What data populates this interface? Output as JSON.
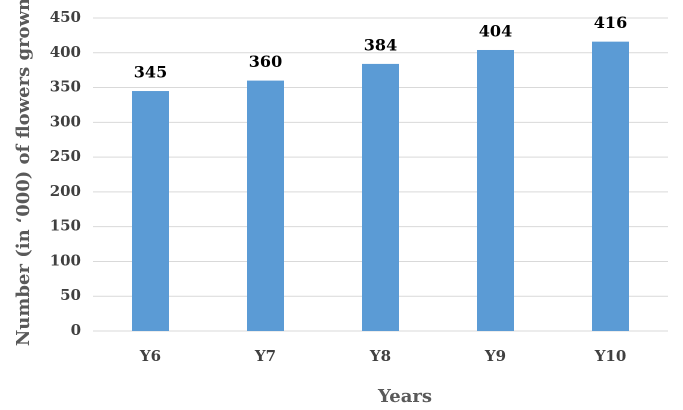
{
  "chart_data": {
    "type": "bar",
    "y_label": "Number (in ‘000) of flowers grown",
    "x_label": "Years",
    "categories": [
      "Y6",
      "Y7",
      "Y8",
      "Y9",
      "Y10"
    ],
    "values": [
      345,
      360,
      384,
      404,
      416
    ],
    "color": "#5b9bd5",
    "ylim": [
      0,
      450
    ],
    "yticks": [
      0,
      50,
      100,
      150,
      200,
      250,
      300,
      350,
      400,
      450
    ],
    "grid": true
  }
}
